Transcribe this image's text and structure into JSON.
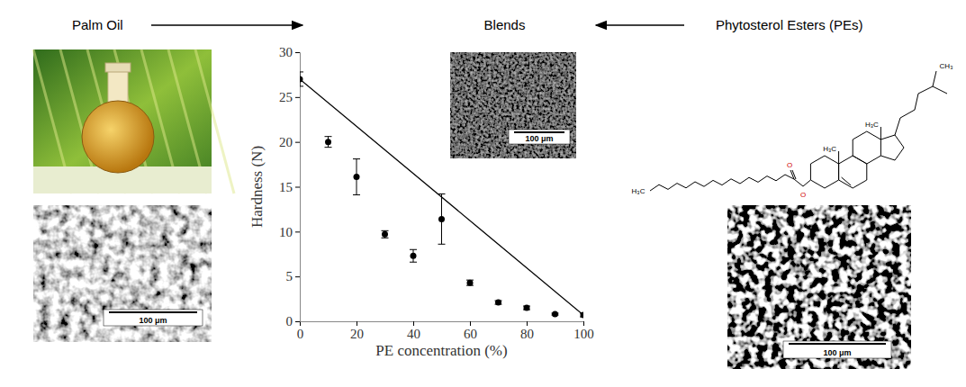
{
  "chart_data": {
    "type": "scatter",
    "title": "Blends",
    "x_label": "PE concentration (%)",
    "y_label": "Hardness (N)",
    "x": [
      0,
      10,
      20,
      30,
      40,
      50,
      60,
      70,
      80,
      90,
      100
    ],
    "series": [
      {
        "type": "scatter",
        "color": "#000000",
        "marker": "circle",
        "values": [
          27.0,
          20.0,
          16.1,
          9.7,
          7.3,
          11.4,
          4.3,
          2.1,
          1.5,
          0.8,
          0.7
        ],
        "errors": [
          0.8,
          0.6,
          2.0,
          0.4,
          0.7,
          2.8,
          0.3,
          0.2,
          0.2,
          0.1,
          0.2
        ]
      },
      {
        "type": "line",
        "color": "#000000",
        "line_style": "solid",
        "x": [
          0,
          100
        ],
        "values": [
          27.0,
          0.7
        ]
      }
    ],
    "xlim": [
      0,
      100
    ],
    "xticks": [
      0,
      20,
      40,
      60,
      80,
      100
    ],
    "ylim": [
      0,
      30
    ],
    "yticks": [
      0,
      5,
      10,
      15,
      20,
      25,
      30
    ],
    "grid": false
  },
  "headers": {
    "left": "Palm Oil",
    "right": "Phytosterol Esters (PEs)"
  },
  "scale_bars": [
    "100 μm",
    "100 μm",
    "100 μm"
  ],
  "molecule_labels": {
    "chain_end": "H₃C",
    "carbonyl": "O",
    "ester": "O",
    "methyl_ab": "H₃C",
    "methyl_cd": "H₃C",
    "side_chain": "CH₃"
  }
}
